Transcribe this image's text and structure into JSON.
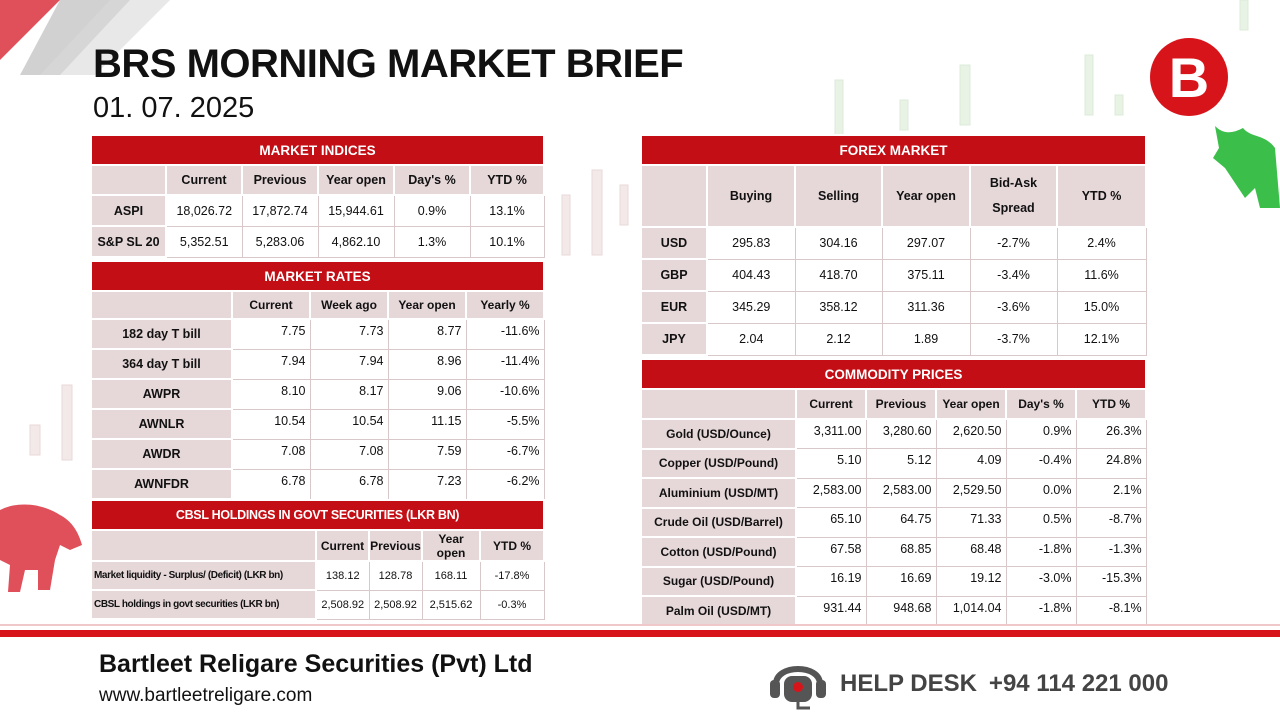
{
  "title": "BRS MORNING MARKET BRIEF",
  "date": "01. 07. 2025",
  "logo_letter": "B",
  "indices": {
    "header": "MARKET INDICES",
    "columns": [
      "",
      "Current",
      "Previous",
      "Year open",
      "Day's %",
      "YTD %"
    ],
    "rows": [
      [
        "ASPI",
        "18,026.72",
        "17,872.74",
        "15,944.61",
        "0.9%",
        "13.1%"
      ],
      [
        "S&P SL 20",
        "5,352.51",
        "5,283.06",
        "4,862.10",
        "1.3%",
        "10.1%"
      ]
    ]
  },
  "rates": {
    "header": "MARKET RATES",
    "columns": [
      "",
      "Current",
      "Week ago",
      "Year open",
      "Yearly %"
    ],
    "rows": [
      [
        "182 day T bill",
        "7.75",
        "7.73",
        "8.77",
        "-11.6%"
      ],
      [
        "364 day T bill",
        "7.94",
        "7.94",
        "8.96",
        "-11.4%"
      ],
      [
        "AWPR",
        "8.10",
        "8.17",
        "9.06",
        "-10.6%"
      ],
      [
        "AWNLR",
        "10.54",
        "10.54",
        "11.15",
        "-5.5%"
      ],
      [
        "AWDR",
        "7.08",
        "7.08",
        "7.59",
        "-6.7%"
      ],
      [
        "AWNFDR",
        "6.78",
        "6.78",
        "7.23",
        "-6.2%"
      ]
    ]
  },
  "cbsl": {
    "header": "CBSL HOLDINGS IN GOVT SECURITIES (LKR BN)",
    "columns": [
      "",
      "Current",
      "Previous",
      "Year open",
      "YTD %"
    ],
    "rows": [
      [
        "Market liquidity - Surplus/ (Deficit) (LKR bn)",
        "138.12",
        "128.78",
        "168.11",
        "-17.8%"
      ],
      [
        "CBSL holdings in govt securities (LKR bn)",
        "2,508.92",
        "2,508.92",
        "2,515.62",
        "-0.3%"
      ]
    ]
  },
  "forex": {
    "header": "FOREX MARKET",
    "columns": [
      "",
      "Buying",
      "Selling",
      "Year open",
      "Bid-Ask Spread",
      "YTD %"
    ],
    "rows": [
      [
        "USD",
        "295.83",
        "304.16",
        "297.07",
        "-2.7%",
        "2.4%"
      ],
      [
        "GBP",
        "404.43",
        "418.70",
        "375.11",
        "-3.4%",
        "11.6%"
      ],
      [
        "EUR",
        "345.29",
        "358.12",
        "311.36",
        "-3.6%",
        "15.0%"
      ],
      [
        "JPY",
        "2.04",
        "2.12",
        "1.89",
        "-3.7%",
        "12.1%"
      ]
    ]
  },
  "commodities": {
    "header": "COMMODITY PRICES",
    "columns": [
      "",
      "Current",
      "Previous",
      "Year open",
      "Day's %",
      "YTD %"
    ],
    "rows": [
      [
        "Gold (USD/Ounce)",
        "3,311.00",
        "3,280.60",
        "2,620.50",
        "0.9%",
        "26.3%"
      ],
      [
        "Copper (USD/Pound)",
        "5.10",
        "5.12",
        "4.09",
        "-0.4%",
        "24.8%"
      ],
      [
        "Aluminium (USD/MT)",
        "2,583.00",
        "2,583.00",
        "2,529.50",
        "0.0%",
        "2.1%"
      ],
      [
        "Crude Oil (USD/Barrel)",
        "65.10",
        "64.75",
        "71.33",
        "0.5%",
        "-8.7%"
      ],
      [
        "Cotton (USD/Pound)",
        "67.58",
        "68.85",
        "68.48",
        "-1.8%",
        "-1.3%"
      ],
      [
        "Sugar (USD/Pound)",
        "16.19",
        "16.69",
        "19.12",
        "-3.0%",
        "-15.3%"
      ],
      [
        "Palm Oil (USD/MT)",
        "931.44",
        "948.68",
        "1,014.04",
        "-1.8%",
        "-8.1%"
      ]
    ]
  },
  "footer": {
    "company": "Bartleet Religare Securities (Pvt) Ltd",
    "website": "www.bartleetreligare.com",
    "help_label": "HELP DESK",
    "help_number": "+94 114 221 000"
  },
  "colors": {
    "accent": "#c20e14",
    "header_cell": "#e6d7d9"
  }
}
